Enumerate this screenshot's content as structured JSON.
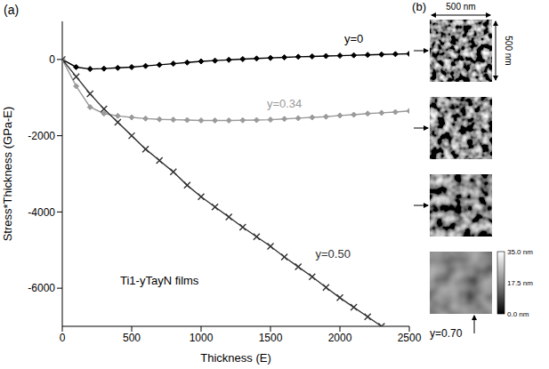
{
  "panel_a_label": "(a)",
  "chart_data": {
    "type": "line",
    "x_label": "Thickness (E)",
    "y_label": "Stress*Thickness (GPa-E)",
    "xlim": [
      0,
      2500
    ],
    "xticks": [
      0,
      500,
      1000,
      1500,
      2000,
      2500
    ],
    "ylim": [
      -7000,
      1000
    ],
    "yticks": [
      -6000,
      -4000,
      -2000,
      0
    ],
    "grid": false,
    "x": [
      0,
      100,
      200,
      300,
      400,
      500,
      600,
      700,
      800,
      900,
      1000,
      1100,
      1200,
      1300,
      1400,
      1500,
      1600,
      1700,
      1800,
      1900,
      2000,
      2100,
      2200,
      2300,
      2400,
      2500
    ],
    "series": [
      {
        "name": "y=0",
        "color": "#000000",
        "marker": "diamond",
        "values": [
          0,
          -200,
          -250,
          -240,
          -220,
          -200,
          -170,
          -140,
          -110,
          -80,
          -50,
          -30,
          -10,
          10,
          25,
          40,
          55,
          70,
          80,
          90,
          100,
          110,
          120,
          130,
          140,
          150
        ]
      },
      {
        "name": "y=0.34",
        "color": "#9a9a9a",
        "marker": "diamond",
        "values": [
          0,
          -700,
          -1250,
          -1420,
          -1480,
          -1520,
          -1550,
          -1570,
          -1580,
          -1590,
          -1600,
          -1600,
          -1600,
          -1595,
          -1590,
          -1580,
          -1560,
          -1540,
          -1520,
          -1500,
          -1470,
          -1450,
          -1420,
          -1400,
          -1380,
          -1350
        ]
      },
      {
        "name": "y=0.50",
        "color": "#333333",
        "marker": "x",
        "values": [
          0,
          -450,
          -900,
          -1300,
          -1650,
          -2000,
          -2350,
          -2650,
          -2950,
          -3300,
          -3600,
          -3870,
          -4130,
          -4400,
          -4650,
          -4900,
          -5180,
          -5440,
          -5700,
          -5980,
          -6250,
          -6500,
          -6750,
          -7000,
          null,
          null
        ]
      }
    ],
    "annotations": [
      {
        "text": "y=0",
        "x": 2100,
        "y": 550,
        "color": "#000000"
      },
      {
        "text": "y=0.34",
        "x": 1600,
        "y": -1150,
        "color": "#9a9a9a"
      },
      {
        "text": "y=0.50",
        "x": 1950,
        "y": -5100,
        "color": "#333333"
      },
      {
        "text": "Ti1-yTayN films",
        "x": 700,
        "y": -5800,
        "color": "#000000"
      }
    ]
  },
  "panel_b": {
    "label": "(b)",
    "scale_bar": [
      "500 nm",
      "500 nm"
    ],
    "image_label": "y=0.70",
    "colorbar": {
      "range": [
        0,
        35
      ],
      "ticks": [
        {
          "value": 0,
          "label": "0.0 nm"
        },
        {
          "value": 17.5,
          "label": "17.5 nm"
        },
        {
          "value": 35,
          "label": "35.0 nm"
        }
      ]
    }
  }
}
